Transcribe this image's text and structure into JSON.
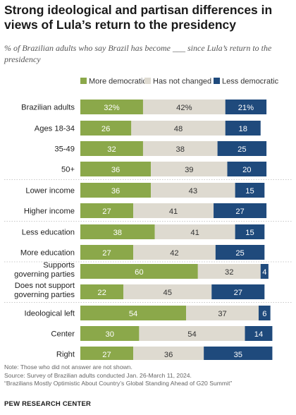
{
  "title": "Strong ideological and partisan differences in views of Lula’s return to the presidency",
  "subtitle": "% of Brazilian adults who say Brazil has become ___ since Lula’s return to the presidency",
  "chart_data": {
    "type": "bar",
    "stacked": true,
    "orientation": "horizontal",
    "categories": [
      "Brazilian adults",
      "Ages 18-34",
      "35-49",
      "50+",
      "Lower income",
      "Higher income",
      "Less education",
      "More education",
      "Supports governing parties",
      "Does not support governing parties",
      "Ideological left",
      "Center",
      "Right"
    ],
    "groups": [
      [
        0,
        1,
        2,
        3
      ],
      [
        4,
        5
      ],
      [
        6,
        7
      ],
      [
        8,
        9
      ],
      [
        10,
        11,
        12
      ]
    ],
    "series": [
      {
        "name": "More democratic",
        "color": "#8ba84a",
        "values": [
          32,
          26,
          32,
          36,
          36,
          27,
          38,
          27,
          60,
          22,
          54,
          30,
          27
        ]
      },
      {
        "name": "Has not changed",
        "color": "#dedad0",
        "values": [
          42,
          48,
          38,
          39,
          43,
          41,
          41,
          42,
          32,
          45,
          37,
          54,
          36
        ]
      },
      {
        "name": "Less democratic",
        "color": "#1f4a7c",
        "values": [
          21,
          18,
          25,
          20,
          15,
          27,
          15,
          25,
          4,
          27,
          6,
          14,
          35
        ]
      }
    ],
    "percent_sign_row": 0,
    "legend_position": "top",
    "grid": false
  },
  "notes": {
    "note": "Note: Those who did not answer are not shown.",
    "source": "Source: Survey of Brazilian adults conducted Jan. 26-March 11, 2024.",
    "report": "“Brazilians Mostly Optimistic About Country’s Global Standing Ahead of G20 Summit”"
  },
  "footer_label": "PEW RESEARCH CENTER"
}
